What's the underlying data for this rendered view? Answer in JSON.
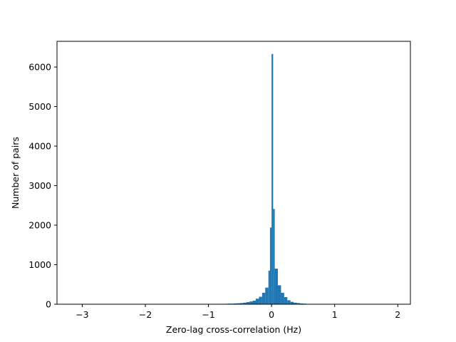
{
  "chart_data": {
    "type": "bar",
    "title": "",
    "xlabel": "Zero-lag cross-correlation (Hz)",
    "ylabel": "Number of pairs",
    "xlim": [
      -3.4,
      2.2
    ],
    "ylim": [
      0,
      6650
    ],
    "xticks": [
      {
        "value": -3,
        "label": "−3"
      },
      {
        "value": -2,
        "label": "−2"
      },
      {
        "value": -1,
        "label": "−1"
      },
      {
        "value": 0,
        "label": "0"
      },
      {
        "value": 1,
        "label": "1"
      },
      {
        "value": 2,
        "label": "2"
      }
    ],
    "yticks": [
      {
        "value": 0,
        "label": "0"
      },
      {
        "value": 1000,
        "label": "1000"
      },
      {
        "value": 2000,
        "label": "2000"
      },
      {
        "value": 3000,
        "label": "3000"
      },
      {
        "value": 4000,
        "label": "4000"
      },
      {
        "value": 5000,
        "label": "5000"
      },
      {
        "value": 6000,
        "label": "6000"
      }
    ],
    "grid": false,
    "bar_color": "#1f77b4",
    "bin_width": 0.05,
    "bins": [
      {
        "x0": -0.85,
        "count": 10
      },
      {
        "x0": -0.8,
        "count": 10
      },
      {
        "x0": -0.75,
        "count": 10
      },
      {
        "x0": -0.7,
        "count": 15
      },
      {
        "x0": -0.65,
        "count": 15
      },
      {
        "x0": -0.6,
        "count": 20
      },
      {
        "x0": -0.55,
        "count": 25
      },
      {
        "x0": -0.5,
        "count": 30
      },
      {
        "x0": -0.45,
        "count": 40
      },
      {
        "x0": -0.4,
        "count": 55
      },
      {
        "x0": -0.35,
        "count": 70
      },
      {
        "x0": -0.3,
        "count": 90
      },
      {
        "x0": -0.25,
        "count": 140
      },
      {
        "x0": -0.2,
        "count": 190
      },
      {
        "x0": -0.15,
        "count": 290
      },
      {
        "x0": -0.1,
        "count": 420
      },
      {
        "x0": -0.05,
        "count": 850
      },
      {
        "x0": -0.025,
        "count": 1940
      },
      {
        "x0": 0.0,
        "count": 6330
      },
      {
        "x0": 0.025,
        "count": 2410
      },
      {
        "x0": 0.05,
        "count": 900
      },
      {
        "x0": 0.1,
        "count": 480
      },
      {
        "x0": 0.15,
        "count": 290
      },
      {
        "x0": 0.2,
        "count": 180
      },
      {
        "x0": 0.25,
        "count": 100
      },
      {
        "x0": 0.3,
        "count": 60
      },
      {
        "x0": 0.35,
        "count": 40
      },
      {
        "x0": 0.4,
        "count": 30
      },
      {
        "x0": 0.45,
        "count": 20
      },
      {
        "x0": 0.5,
        "count": 15
      }
    ]
  }
}
